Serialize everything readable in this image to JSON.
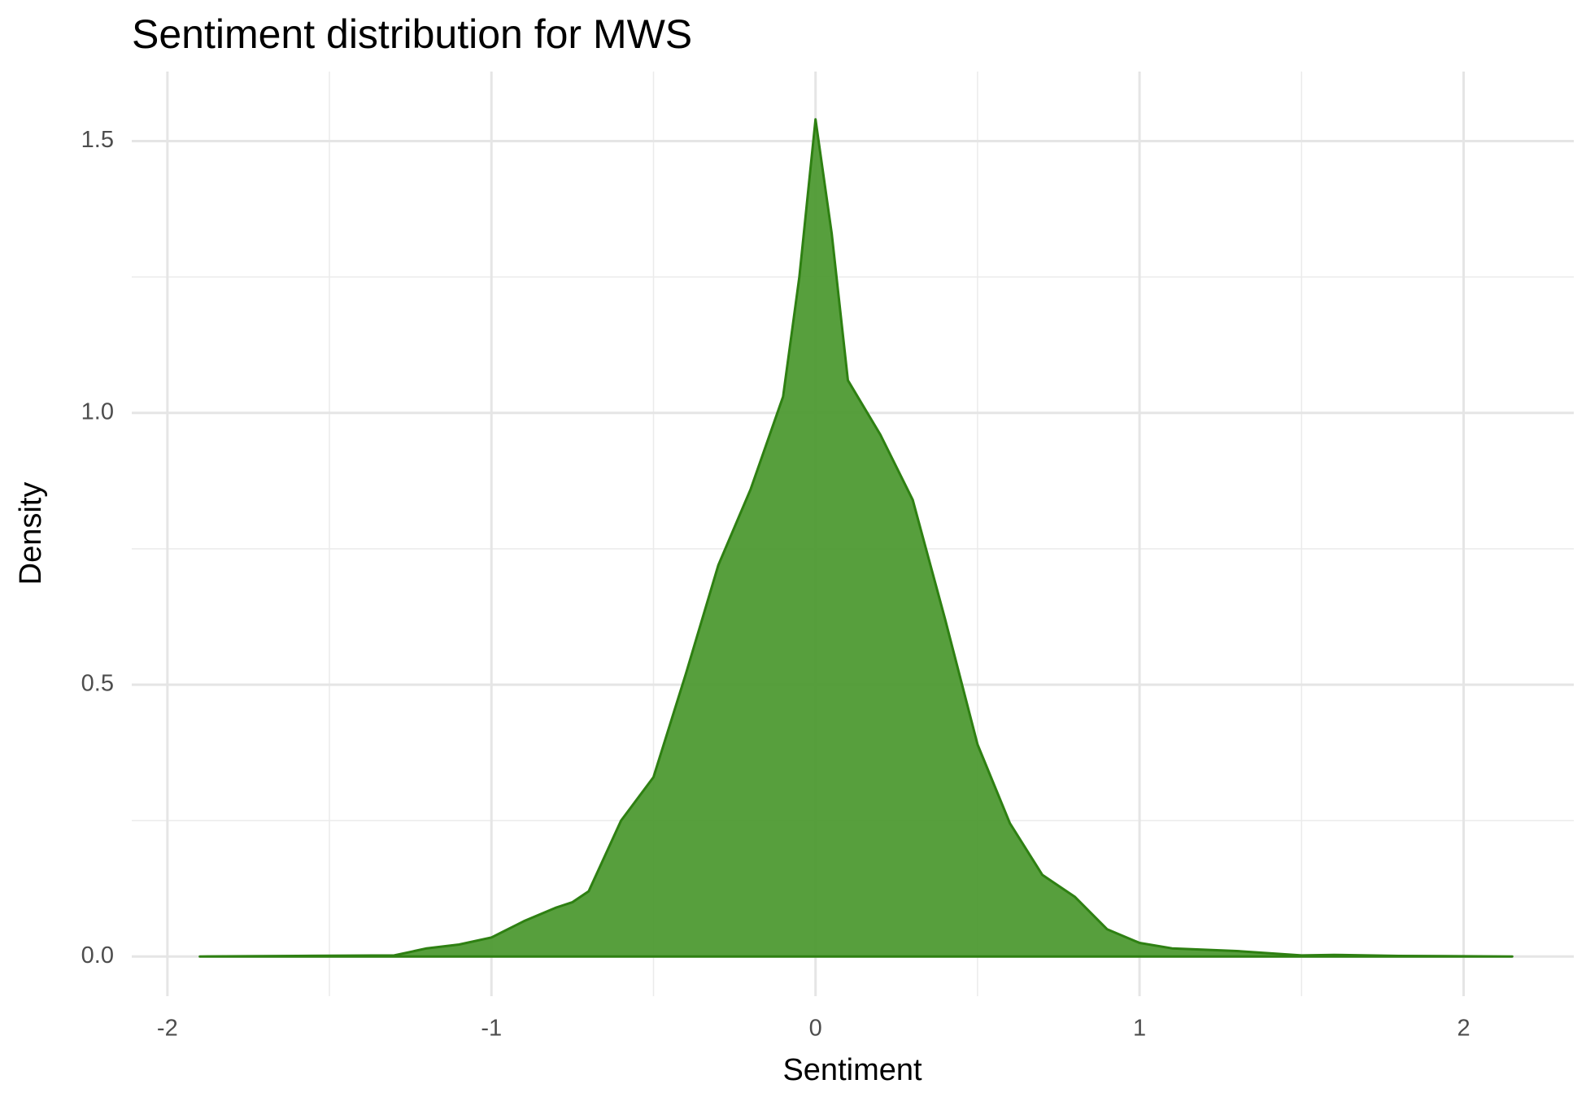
{
  "chart_data": {
    "type": "area",
    "title": "Sentiment distribution for MWS",
    "x_label": "Sentiment",
    "y_label": "Density",
    "x": [
      -1.9,
      -1.6,
      -1.3,
      -1.2,
      -1.1,
      -1.0,
      -0.9,
      -0.8,
      -0.75,
      -0.7,
      -0.6,
      -0.5,
      -0.4,
      -0.3,
      -0.2,
      -0.1,
      -0.05,
      0,
      0.05,
      0.1,
      0.2,
      0.3,
      0.4,
      0.5,
      0.6,
      0.7,
      0.8,
      0.9,
      1.0,
      1.1,
      1.3,
      1.5,
      1.6,
      1.8,
      2.15
    ],
    "values": [
      0,
      0.001,
      0.002,
      0.015,
      0.022,
      0.035,
      0.065,
      0.09,
      0.1,
      0.12,
      0.25,
      0.33,
      0.52,
      0.72,
      0.86,
      1.03,
      1.25,
      1.54,
      1.33,
      1.06,
      0.96,
      0.84,
      0.62,
      0.39,
      0.245,
      0.15,
      0.11,
      0.05,
      0.025,
      0.015,
      0.01,
      0.002,
      0.003,
      0.001,
      0
    ],
    "fill": "#4e9a33",
    "color": "#2e8012",
    "xlim": [
      -2.11,
      2.34
    ],
    "ylim": [
      -0.073,
      1.628
    ],
    "xticks": [
      -2,
      -1,
      0,
      1,
      2
    ],
    "yticks": [
      {
        "value": 0,
        "label": "0.0"
      },
      {
        "value": 0.5,
        "label": "0.5"
      },
      {
        "value": 1,
        "label": "1.0"
      },
      {
        "value": 1.5,
        "label": "1.5"
      }
    ],
    "x_minor_grid": [
      -1.5,
      -0.5,
      0.5,
      1.5
    ],
    "y_minor_grid": [
      0.25,
      0.75,
      1.25
    ],
    "grid": true
  }
}
